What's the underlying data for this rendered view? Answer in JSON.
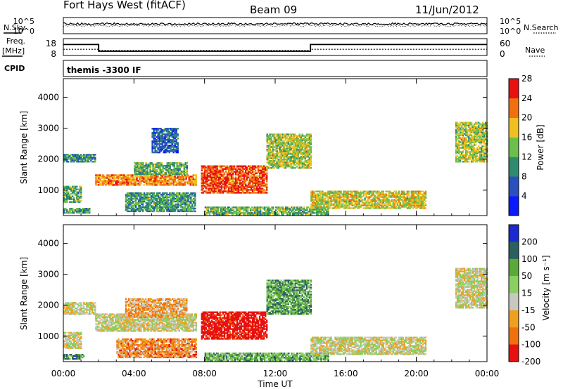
{
  "header": {
    "title": "Fort Hays West (fitACF)",
    "beam": "Beam 09",
    "date": "11/Jun/2012"
  },
  "status_panels": {
    "nsky_label": "N.Sky",
    "nsearch_label": "N.Search",
    "freq_label_line1": "Freq.",
    "freq_label_line2": "[MHz]",
    "nave_label": "Nave",
    "cpid_label": "CPID",
    "cpid_value": "themis -3300 IF",
    "noise_ticks_left": [
      "10^5",
      "10^0"
    ],
    "noise_ticks_right": [
      "10^5",
      "10^0"
    ],
    "freq_ticks": [
      "18",
      "8"
    ],
    "nave_ticks": [
      "60",
      "0"
    ],
    "freq_series": {
      "x_hours": [
        0,
        2,
        2,
        14,
        14,
        24
      ],
      "freq_mhz": [
        14.5,
        14.5,
        10.5,
        10.5,
        14.5,
        14.5
      ]
    },
    "nave_series": {
      "x_hours": [
        0,
        2,
        2,
        14,
        14,
        24
      ],
      "nave": [
        22,
        22,
        18,
        18,
        22,
        22
      ]
    }
  },
  "chart_data": [
    {
      "type": "heatmap",
      "name": "power",
      "ylabel": "Slant Range [km]",
      "ylim": [
        180,
        4600
      ],
      "xlim_hours": [
        0,
        24
      ],
      "yticks": [
        1000,
        2000,
        3000,
        4000
      ],
      "colorbar": {
        "label": "Power [dB]",
        "ticks": [
          "4",
          "8",
          "12",
          "16",
          "20",
          "24",
          "28"
        ],
        "colors": [
          "#0a19ff",
          "#2a4fbf",
          "#2f8b70",
          "#6bbf4a",
          "#f0c020",
          "#f07010",
          "#e81010"
        ]
      },
      "regions": [
        {
          "t0": 0.0,
          "t1": 1.8,
          "r0": 1900,
          "r1": 2150,
          "level": 0.35
        },
        {
          "t0": 0.0,
          "t1": 1.0,
          "r0": 600,
          "r1": 1100,
          "level": 0.45
        },
        {
          "t0": 0.0,
          "t1": 1.5,
          "r0": 250,
          "r1": 420,
          "level": 0.4
        },
        {
          "t0": 1.8,
          "t1": 7.5,
          "r0": 1150,
          "r1": 1500,
          "level": 0.75
        },
        {
          "t0": 4.0,
          "t1": 7.0,
          "r0": 1500,
          "r1": 1900,
          "level": 0.45
        },
        {
          "t0": 3.5,
          "t1": 7.5,
          "r0": 300,
          "r1": 900,
          "level": 0.4
        },
        {
          "t0": 7.8,
          "t1": 11.5,
          "r0": 900,
          "r1": 1800,
          "level": 0.85
        },
        {
          "t0": 8.0,
          "t1": 15.0,
          "r0": 200,
          "r1": 450,
          "level": 0.45
        },
        {
          "t0": 11.5,
          "t1": 14.0,
          "r0": 1700,
          "r1": 2800,
          "level": 0.55
        },
        {
          "t0": 14.0,
          "t1": 20.5,
          "r0": 400,
          "r1": 950,
          "level": 0.6
        },
        {
          "t0": 22.2,
          "t1": 24.0,
          "r0": 1900,
          "r1": 3200,
          "level": 0.55
        },
        {
          "t0": 5.0,
          "t1": 6.5,
          "r0": 2200,
          "r1": 3000,
          "level": 0.25
        }
      ]
    },
    {
      "type": "heatmap",
      "name": "velocity",
      "ylabel": "Slant Range [km]",
      "ylim": [
        180,
        4600
      ],
      "xlim_hours": [
        0,
        24
      ],
      "yticks": [
        1000,
        2000,
        3000,
        4000
      ],
      "colorbar": {
        "label": "Velocity [m s⁻¹]",
        "ticks": [
          "200",
          "100",
          "50",
          "15",
          "-15",
          "-50",
          "-100",
          "-200"
        ],
        "colors": [
          "#1a2ad0",
          "#2a6060",
          "#5aaa3a",
          "#8ad060",
          "#c8c8c0",
          "#f0a020",
          "#f07010",
          "#e81010"
        ]
      },
      "regions": [
        {
          "t0": 0.0,
          "t1": 1.8,
          "r0": 1700,
          "r1": 2100,
          "level": 0.55
        },
        {
          "t0": 0.0,
          "t1": 1.0,
          "r0": 600,
          "r1": 1100,
          "level": 0.55
        },
        {
          "t0": 0.0,
          "t1": 1.2,
          "r0": 250,
          "r1": 400,
          "level": 0.25
        },
        {
          "t0": 1.8,
          "t1": 7.5,
          "r0": 1150,
          "r1": 1700,
          "level": 0.55
        },
        {
          "t0": 3.5,
          "t1": 7.0,
          "r0": 1600,
          "r1": 2200,
          "level": 0.7
        },
        {
          "t0": 3.0,
          "t1": 7.5,
          "r0": 300,
          "r1": 900,
          "level": 0.75
        },
        {
          "t0": 7.8,
          "t1": 11.5,
          "r0": 900,
          "r1": 1800,
          "level": 1.0
        },
        {
          "t0": 8.0,
          "t1": 15.0,
          "r0": 200,
          "r1": 450,
          "level": 0.35
        },
        {
          "t0": 11.5,
          "t1": 14.0,
          "r0": 1700,
          "r1": 2800,
          "level": 0.3
        },
        {
          "t0": 14.0,
          "t1": 20.5,
          "r0": 400,
          "r1": 950,
          "level": 0.55
        },
        {
          "t0": 22.2,
          "t1": 24.0,
          "r0": 1900,
          "r1": 3200,
          "level": 0.55
        }
      ]
    }
  ],
  "x_axis": {
    "ticks": [
      "00:00",
      "04:00",
      "08:00",
      "12:00",
      "16:00",
      "20:00",
      "00:00"
    ],
    "label": "Time UT"
  }
}
